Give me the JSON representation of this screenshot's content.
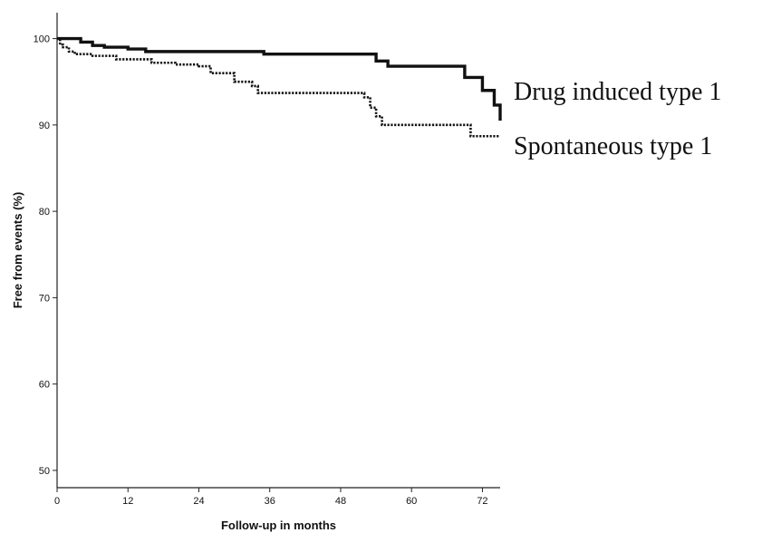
{
  "chart_data": {
    "type": "line",
    "xlabel": "Follow-up in months",
    "ylabel": "Free from events (%)",
    "xlim": [
      0,
      75
    ],
    "ylim": [
      48,
      103
    ],
    "xticks": [
      0,
      12,
      24,
      36,
      48,
      60,
      72
    ],
    "yticks": [
      50,
      60,
      70,
      80,
      90,
      100
    ],
    "grid": false,
    "legend_placement": "right, next to line ends",
    "series": [
      {
        "name": "Drug induced type 1",
        "style": "solid",
        "color": "#111111",
        "points": [
          [
            0,
            100
          ],
          [
            2,
            100
          ],
          [
            4,
            99.6
          ],
          [
            6,
            99.2
          ],
          [
            8,
            99.0
          ],
          [
            12,
            98.8
          ],
          [
            15,
            98.5
          ],
          [
            30,
            98.5
          ],
          [
            35,
            98.2
          ],
          [
            45,
            98.2
          ],
          [
            53,
            98.2
          ],
          [
            54,
            97.4
          ],
          [
            56,
            96.8
          ],
          [
            62,
            96.8
          ],
          [
            68,
            96.8
          ],
          [
            69,
            95.5
          ],
          [
            71,
            95.5
          ],
          [
            72,
            94.0
          ],
          [
            73,
            94.0
          ],
          [
            74,
            92.3
          ],
          [
            75,
            92.3
          ],
          [
            75,
            90.5
          ]
        ]
      },
      {
        "name": "Spontaneous type 1",
        "style": "dotted",
        "color": "#111111",
        "points": [
          [
            0,
            100
          ],
          [
            0.5,
            99.3
          ],
          [
            1,
            99.0
          ],
          [
            2,
            98.5
          ],
          [
            3,
            98.2
          ],
          [
            6,
            98.0
          ],
          [
            10,
            97.6
          ],
          [
            16,
            97.2
          ],
          [
            20,
            97.0
          ],
          [
            24,
            96.8
          ],
          [
            26,
            96.0
          ],
          [
            30,
            95.0
          ],
          [
            33,
            94.5
          ],
          [
            34,
            93.7
          ],
          [
            40,
            93.7
          ],
          [
            52,
            93.2
          ],
          [
            53,
            92.0
          ],
          [
            54,
            91.0
          ],
          [
            55,
            90.0
          ],
          [
            60,
            90.0
          ],
          [
            69,
            90.0
          ],
          [
            70,
            88.7
          ],
          [
            75,
            88.7
          ]
        ]
      }
    ]
  }
}
